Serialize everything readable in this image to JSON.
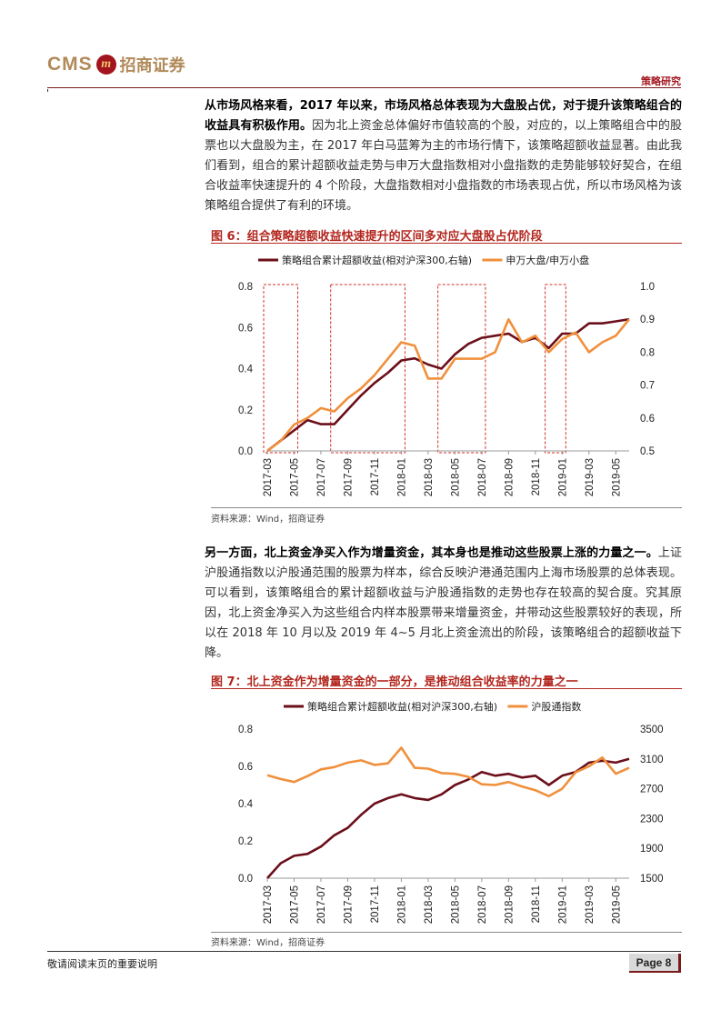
{
  "header": {
    "logo_cms": "CMS",
    "logo_mark": "m",
    "logo_cn": "招商证券",
    "tag": "策略研究"
  },
  "para1": {
    "bold": "从市场风格来看，2017 年以来，市场风格总体表现为大盘股占优，对于提升该策略组合的收益具有积极作用。",
    "text": "因为北上资金总体偏好市值较高的个股，对应的，以上策略组合中的股票也以大盘股为主，在 2017 年白马蓝筹为主的市场行情下，该策略超额收益显著。由此我们看到，组合的累计超额收益走势与申万大盘指数相对小盘指数的走势能够较好契合，在组合收益率快速提升的 4 个阶段，大盘指数相对小盘指数的市场表现占优，所以市场风格为该策略组合提供了有利的环境。"
  },
  "fig6": {
    "title": "图 6：组合策略超额收益快速提升的区间多对应大盘股占优阶段",
    "source": "资料来源：Wind，招商证券"
  },
  "para2": {
    "bold": "另一方面，北上资金净买入作为增量资金，其本身也是推动这些股票上涨的力量之一。",
    "text": "上证沪股通指数以沪股通范围的股票为样本，综合反映沪港通范围内上海市场股票的总体表现。可以看到，该策略组合的累计超额收益与沪股通指数的走势也存在较高的契合度。究其原因，北上资金净买入为这些组合内样本股票带来增量资金，并带动这些股票较好的表现，所以在 2018 年 10 月以及 2019 年 4~5 月北上资金流出的阶段，该策略组合的超额收益下降。"
  },
  "fig7": {
    "title": "图 7：北上资金作为增量资金的一部分，是推动组合收益率的力量之一",
    "source": "资料来源：Wind，招商证券"
  },
  "footer": {
    "note": "敬请阅读末页的重要说明",
    "page": "Page 8"
  },
  "chart_data": [
    {
      "type": "line",
      "x_tick_labels": [
        "2017-03",
        "2017-05",
        "2017-07",
        "2017-09",
        "2017-11",
        "2018-01",
        "2018-03",
        "2018-05",
        "2018-07",
        "2018-09",
        "2018-11",
        "2019-01",
        "2019-03",
        "2019-05"
      ],
      "x": [
        "2017-03",
        "2017-04",
        "2017-05",
        "2017-06",
        "2017-07",
        "2017-08",
        "2017-09",
        "2017-10",
        "2017-11",
        "2017-12",
        "2018-01",
        "2018-02",
        "2018-03",
        "2018-04",
        "2018-05",
        "2018-06",
        "2018-07",
        "2018-08",
        "2018-09",
        "2018-10",
        "2018-11",
        "2018-12",
        "2019-01",
        "2019-02",
        "2019-03",
        "2019-04",
        "2019-05",
        "2019-06"
      ],
      "series": [
        {
          "name": "策略组合累计超额收益(相对沪深300,右轴)",
          "axis": "left",
          "color": "#6b0f1a",
          "values": [
            0.0,
            0.05,
            0.1,
            0.15,
            0.13,
            0.13,
            0.2,
            0.27,
            0.33,
            0.38,
            0.44,
            0.45,
            0.42,
            0.4,
            0.47,
            0.52,
            0.55,
            0.56,
            0.57,
            0.53,
            0.55,
            0.5,
            0.57,
            0.57,
            0.62,
            0.62,
            0.63,
            0.64
          ]
        },
        {
          "name": "申万大盘/申万小盘",
          "axis": "right",
          "color": "#f0903c",
          "values": [
            0.5,
            0.53,
            0.58,
            0.6,
            0.63,
            0.62,
            0.66,
            0.69,
            0.73,
            0.78,
            0.83,
            0.82,
            0.72,
            0.72,
            0.78,
            0.78,
            0.78,
            0.8,
            0.9,
            0.83,
            0.85,
            0.8,
            0.84,
            0.86,
            0.8,
            0.83,
            0.85,
            0.9
          ]
        }
      ],
      "y_left": [
        0.0,
        0.2,
        0.4,
        0.6,
        0.8
      ],
      "y_right": [
        0.5,
        0.6,
        0.7,
        0.8,
        0.9,
        1.0
      ],
      "ylim_left": [
        0.0,
        0.8
      ],
      "ylim_right": [
        0.5,
        1.0
      ],
      "highlight_ranges": [
        [
          "2017-03",
          "2017-05"
        ],
        [
          "2017-08",
          "2018-01"
        ],
        [
          "2018-04",
          "2018-07"
        ],
        [
          "2018-12",
          "2019-01"
        ]
      ],
      "legend_position": "top"
    },
    {
      "type": "line",
      "x_tick_labels": [
        "2017-03",
        "2017-05",
        "2017-07",
        "2017-09",
        "2017-11",
        "2018-01",
        "2018-03",
        "2018-05",
        "2018-07",
        "2018-09",
        "2018-11",
        "2019-01",
        "2019-03",
        "2019-05"
      ],
      "x": [
        "2017-03",
        "2017-04",
        "2017-05",
        "2017-06",
        "2017-07",
        "2017-08",
        "2017-09",
        "2017-10",
        "2017-11",
        "2017-12",
        "2018-01",
        "2018-02",
        "2018-03",
        "2018-04",
        "2018-05",
        "2018-06",
        "2018-07",
        "2018-08",
        "2018-09",
        "2018-10",
        "2018-11",
        "2018-12",
        "2019-01",
        "2019-02",
        "2019-03",
        "2019-04",
        "2019-05",
        "2019-06"
      ],
      "series": [
        {
          "name": "策略组合累计超额收益(相对沪深300,右轴)",
          "axis": "left",
          "color": "#6b0f1a",
          "values": [
            0.0,
            0.08,
            0.12,
            0.13,
            0.17,
            0.23,
            0.27,
            0.34,
            0.4,
            0.43,
            0.45,
            0.43,
            0.42,
            0.45,
            0.5,
            0.53,
            0.57,
            0.55,
            0.56,
            0.54,
            0.55,
            0.5,
            0.55,
            0.57,
            0.62,
            0.63,
            0.62,
            0.64
          ]
        },
        {
          "name": "沪股通指数",
          "axis": "right",
          "color": "#f0903c",
          "values": [
            2880,
            2830,
            2790,
            2870,
            2960,
            2990,
            3050,
            3080,
            3020,
            3040,
            3250,
            2980,
            2970,
            2910,
            2900,
            2860,
            2760,
            2750,
            2790,
            2730,
            2680,
            2600,
            2700,
            2920,
            3000,
            3120,
            2900,
            2980
          ]
        }
      ],
      "y_left": [
        0.0,
        0.2,
        0.4,
        0.6,
        0.8
      ],
      "y_right": [
        1500,
        1900,
        2300,
        2700,
        3100,
        3500
      ],
      "ylim_left": [
        0.0,
        0.8
      ],
      "ylim_right": [
        1500,
        3500
      ],
      "legend_position": "top"
    }
  ]
}
